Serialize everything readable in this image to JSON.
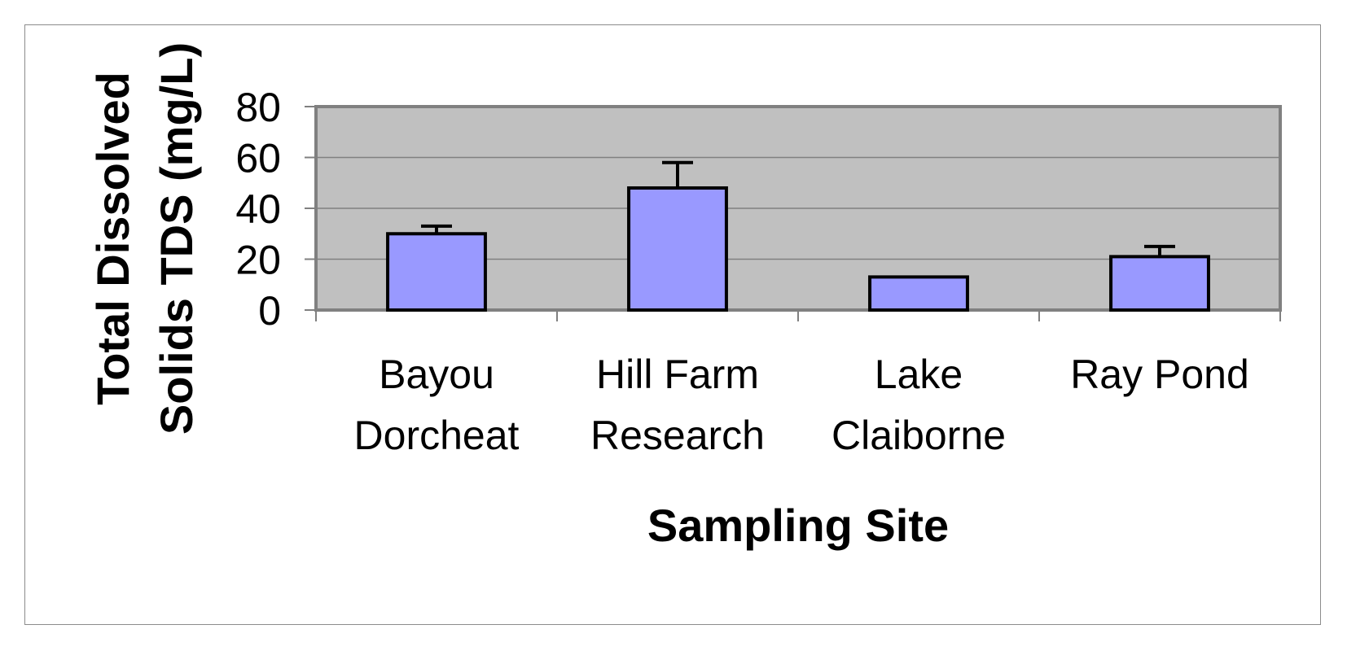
{
  "chart_data": {
    "type": "bar",
    "xlabel": "Sampling Site",
    "ylabel": [
      "Total Dissolved",
      "Solids TDS (mg/L)"
    ],
    "categories": [
      [
        "Bayou",
        "Dorcheat"
      ],
      [
        "Hill Farm",
        "Research"
      ],
      [
        "Lake",
        "Claiborne"
      ],
      [
        "Ray Pond"
      ]
    ],
    "values": [
      30,
      48,
      13,
      21
    ],
    "error_upper": [
      33,
      58,
      13,
      25
    ],
    "ylim": [
      0,
      80
    ],
    "yticks": [
      "0",
      "20",
      "40",
      "60",
      "80"
    ],
    "grid": true,
    "legend": "none",
    "colors": {
      "bar_fill": "#9999ff",
      "plot_background": "#c0c0c0",
      "gridline": "#808080",
      "outline": "#000000"
    }
  }
}
